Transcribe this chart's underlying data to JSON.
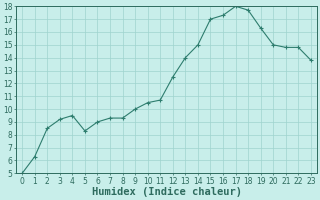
{
  "x": [
    0,
    1,
    2,
    3,
    4,
    5,
    6,
    7,
    8,
    9,
    10,
    11,
    12,
    13,
    14,
    15,
    16,
    17,
    18,
    19,
    20,
    21,
    22,
    23
  ],
  "y": [
    5.0,
    6.3,
    8.5,
    9.2,
    9.5,
    8.3,
    9.0,
    9.3,
    9.3,
    10.0,
    10.5,
    10.7,
    12.5,
    14.0,
    15.0,
    17.0,
    17.3,
    18.0,
    17.7,
    16.3,
    15.0,
    14.8,
    14.8,
    13.8
  ],
  "line_color": "#2e7d6e",
  "marker": "+",
  "marker_size": 3,
  "bg_color": "#c8eeea",
  "grid_color": "#9fd4ce",
  "xlabel": "Humidex (Indice chaleur)",
  "xlim": [
    -0.5,
    23.5
  ],
  "ylim": [
    5,
    18
  ],
  "yticks": [
    5,
    6,
    7,
    8,
    9,
    10,
    11,
    12,
    13,
    14,
    15,
    16,
    17,
    18
  ],
  "xticks": [
    0,
    1,
    2,
    3,
    4,
    5,
    6,
    7,
    8,
    9,
    10,
    11,
    12,
    13,
    14,
    15,
    16,
    17,
    18,
    19,
    20,
    21,
    22,
    23
  ],
  "tick_color": "#2e6b5e",
  "axis_color": "#2e6b5e",
  "xlabel_fontsize": 7.5,
  "tick_fontsize": 5.5,
  "linewidth": 0.8,
  "markeredgewidth": 0.8
}
